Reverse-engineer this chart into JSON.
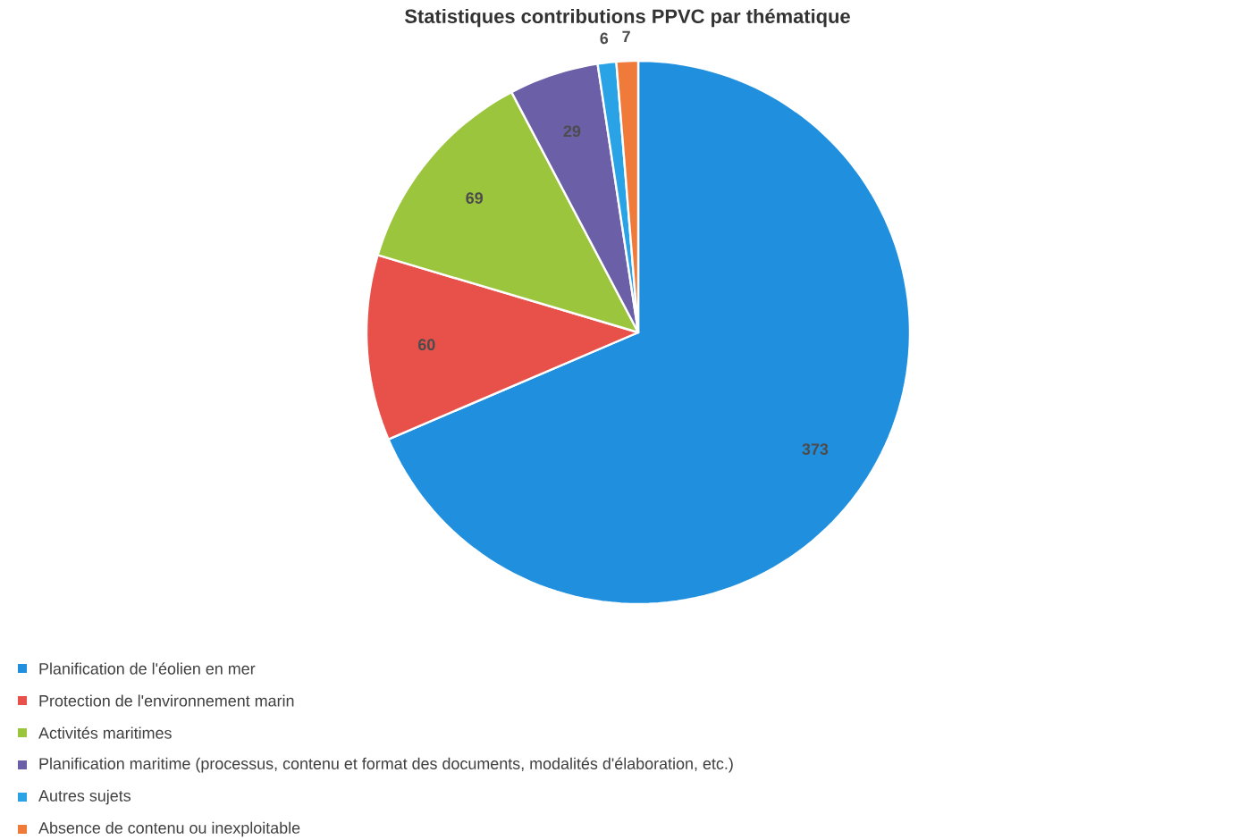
{
  "chart_data": {
    "type": "pie",
    "title": "Statistiques contributions PPVC par thématique",
    "categories": [
      "Planification de l'éolien en mer",
      "Protection de l'environnement marin",
      "Activités maritimes",
      "Planification maritime (processus, contenu et format des documents, modalités d'élaboration, etc.)",
      "Autres sujets",
      "Absence de contenu ou inexploitable"
    ],
    "values": [
      373,
      60,
      69,
      29,
      6,
      7
    ],
    "colors": [
      "#1f8fde",
      "#e8504a",
      "#9bc53d",
      "#6b5fa8",
      "#2aa3e6",
      "#f07a3a"
    ],
    "data_labels": true,
    "legend": "bottom left"
  }
}
